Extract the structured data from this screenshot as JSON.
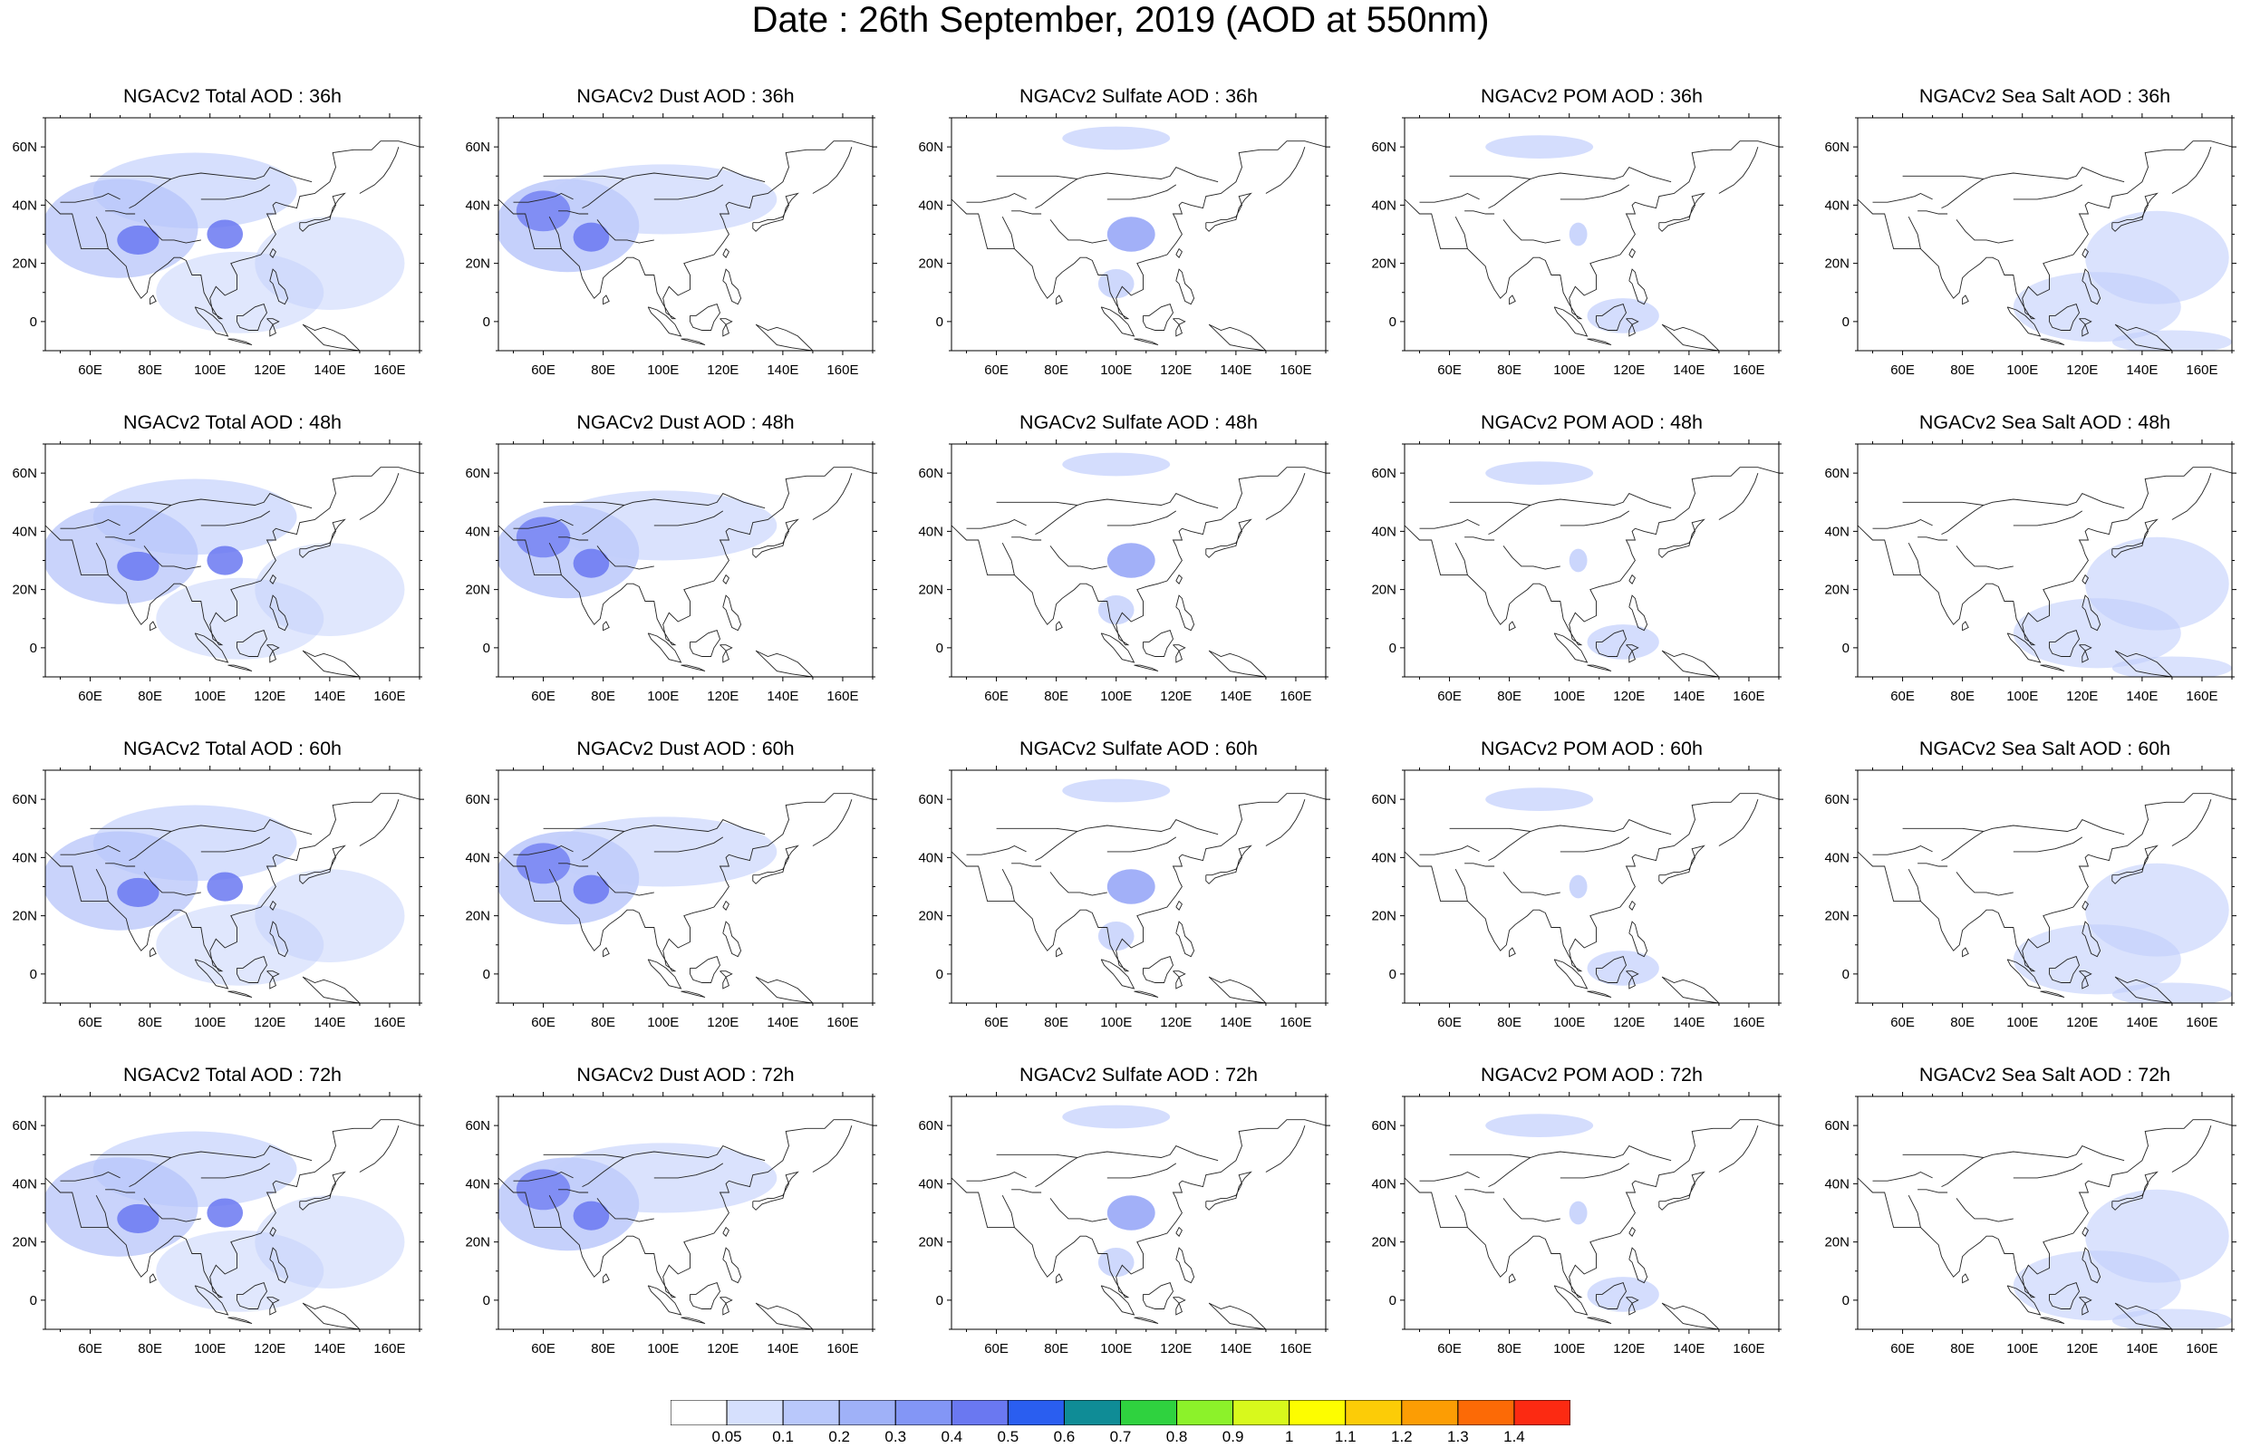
{
  "title": "Date : 26th September, 2019 (AOD at 550nm)",
  "panels": [
    [
      "NGACv2 Total AOD : 36h",
      "NGACv2 Dust AOD : 36h",
      "NGACv2 Sulfate AOD : 36h",
      "NGACv2 POM AOD : 36h",
      "NGACv2 Sea Salt AOD : 36h"
    ],
    [
      "NGACv2 Total AOD : 48h",
      "NGACv2 Dust AOD : 48h",
      "NGACv2 Sulfate AOD : 48h",
      "NGACv2 POM AOD : 48h",
      "NGACv2 Sea Salt AOD : 48h"
    ],
    [
      "NGACv2 Total AOD : 60h",
      "NGACv2 Dust AOD : 60h",
      "NGACv2 Sulfate AOD : 60h",
      "NGACv2 POM AOD : 60h",
      "NGACv2 Sea Salt AOD : 60h"
    ],
    [
      "NGACv2 Total AOD : 72h",
      "NGACv2 Dust AOD : 72h",
      "NGACv2 Sulfate AOD : 72h",
      "NGACv2 POM AOD : 72h",
      "NGACv2 Sea Salt  AOD : 72h"
    ]
  ],
  "map": {
    "lon_range": [
      45,
      170
    ],
    "lat_range": [
      -10,
      70
    ],
    "x_ticks": [
      "60E",
      "80E",
      "100E",
      "120E",
      "140E",
      "160E"
    ],
    "x_tick_values": [
      60,
      80,
      100,
      120,
      140,
      160
    ],
    "y_ticks": [
      "0",
      "20N",
      "40N",
      "60N"
    ],
    "y_tick_values": [
      0,
      20,
      40,
      60
    ]
  },
  "colorbar": {
    "labels": [
      "0.05",
      "0.1",
      "0.2",
      "0.3",
      "0.4",
      "0.5",
      "0.6",
      "0.7",
      "0.8",
      "0.9",
      "1",
      "1.1",
      "1.2",
      "1.3",
      "1.4"
    ],
    "colors": [
      "#ffffff",
      "#d6e0fd",
      "#b9c8fb",
      "#9fb1f8",
      "#8396f6",
      "#6a78f1",
      "#2a5ef0",
      "#0f8c96",
      "#2fd23f",
      "#8cf22a",
      "#d8f91c",
      "#fdfd00",
      "#fccc07",
      "#fc9d04",
      "#fc6a06",
      "#fc2a12"
    ]
  }
}
